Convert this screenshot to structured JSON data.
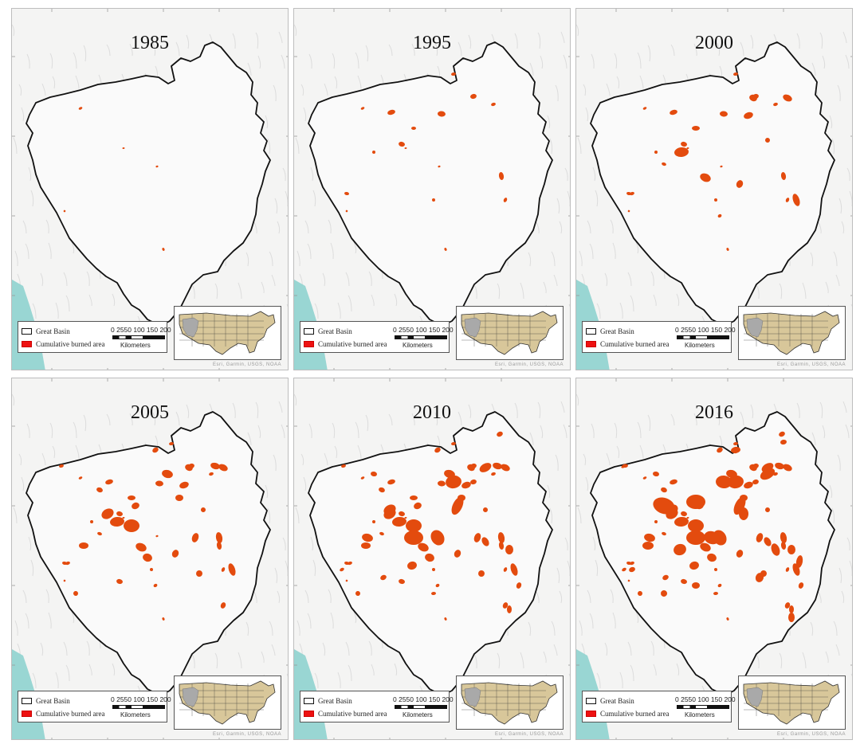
{
  "figure": {
    "panels": [
      {
        "year": "1985",
        "burn_level": 0
      },
      {
        "year": "1995",
        "burn_level": 1
      },
      {
        "year": "2000",
        "burn_level": 2
      },
      {
        "year": "2005",
        "burn_level": 3
      },
      {
        "year": "2010",
        "burn_level": 4
      },
      {
        "year": "2016",
        "burn_level": 5
      }
    ],
    "legend": {
      "boundary_label": "Great Basin",
      "burned_label": "Cumulative burned area"
    },
    "scale_bar": {
      "ticks": "0 2550   100  150  200",
      "unit": "Kilometers"
    },
    "credit": "Esri, Garmin, USGS, NOAA",
    "colors": {
      "burned": "#e34b0e",
      "burned_legend": "#ee1111",
      "boundary": "#111111",
      "land": "#d8c79a",
      "inset_highlight": "#a9a9a9",
      "ocean": "#8fd3cf"
    }
  }
}
